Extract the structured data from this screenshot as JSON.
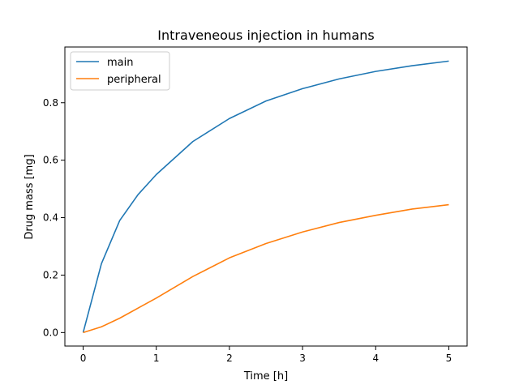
{
  "chart_data": {
    "type": "line",
    "title": "Intraveneous injection in humans",
    "xlabel": "Time [h]",
    "ylabel": "Drug mass [mg]",
    "xlim": [
      -0.25,
      5.25
    ],
    "ylim": [
      -0.047,
      0.994
    ],
    "xticks": [
      0,
      1,
      2,
      3,
      4,
      5
    ],
    "yticks": [
      0.0,
      0.2,
      0.4,
      0.6,
      0.8
    ],
    "xtick_labels": [
      "0",
      "1",
      "2",
      "3",
      "4",
      "5"
    ],
    "ytick_labels": [
      "0.0",
      "0.2",
      "0.4",
      "0.6",
      "0.8"
    ],
    "grid": false,
    "legend_position": "top-left",
    "x": [
      0,
      0.25,
      0.5,
      0.75,
      1.0,
      1.5,
      2.0,
      2.5,
      3.0,
      3.5,
      4.0,
      4.5,
      5.0
    ],
    "series": [
      {
        "name": "main",
        "color": "#1f77b4",
        "values": [
          0.0,
          0.24,
          0.39,
          0.48,
          0.55,
          0.665,
          0.745,
          0.806,
          0.849,
          0.883,
          0.909,
          0.929,
          0.945
        ]
      },
      {
        "name": "peripheral",
        "color": "#ff7f0e",
        "values": [
          0.0,
          0.02,
          0.05,
          0.085,
          0.12,
          0.195,
          0.26,
          0.31,
          0.35,
          0.383,
          0.408,
          0.43,
          0.445
        ]
      }
    ]
  }
}
